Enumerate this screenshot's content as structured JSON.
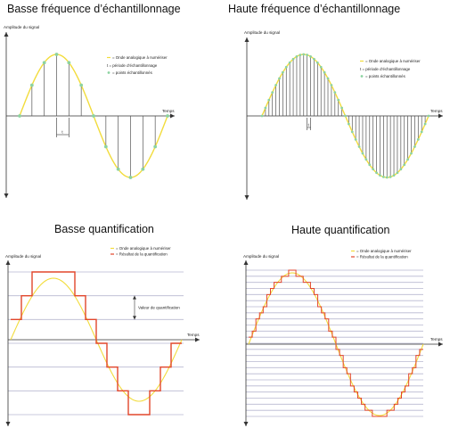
{
  "colors": {
    "wave": "#f2dc3c",
    "samples": "#8cd3a0",
    "stem": "#555555",
    "staircase": "#e2462c",
    "levels": "#b8b8d0",
    "axis": "#333333"
  },
  "panels": [
    {
      "title": "Basse fréquence d’échantillonnage",
      "ylabel": "Amplitude du signal",
      "xlabel": "Temps",
      "legend": [
        "= Onde analogique à numériser",
        "t = période d’échantillonnage",
        "= points échantillonnés"
      ],
      "period_marker": "t",
      "samples_per_period": 12
    },
    {
      "title": "Haute fréquence d’échantillonnage",
      "ylabel": "Amplitude du signal",
      "xlabel": "Temps",
      "legend": [
        "= Onde analogique à numériser",
        "t = période d’échantillonnage",
        "= points échantillonnés"
      ],
      "period_marker": "t",
      "samples_per_period": 48
    },
    {
      "title": "Basse quantification",
      "ylabel": "Amplitude du signal",
      "xlabel": "Temps",
      "legend": [
        "= Onde analogique à numériser",
        "= Résultat de la quantification"
      ],
      "quant_label": "Valeur de quantification",
      "levels": 7
    },
    {
      "title": "Haute quantification",
      "ylabel": "Amplitude du signal",
      "xlabel": "Temps",
      "legend": [
        "= Onde analogique à numériser",
        "= Résultat de la quantification"
      ],
      "levels": 25
    }
  ]
}
